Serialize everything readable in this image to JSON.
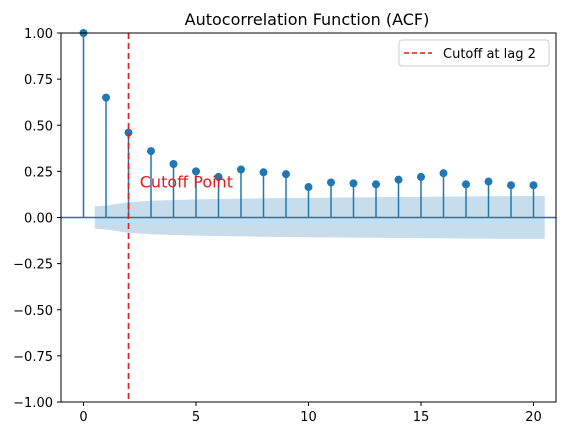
{
  "chart_data": {
    "type": "stem",
    "title": "Autocorrelation Function (ACF)",
    "xlabel": "",
    "ylabel": "",
    "xlim": [
      -1,
      21
    ],
    "ylim": [
      -1.0,
      1.0
    ],
    "x_ticks": [
      0,
      5,
      10,
      15,
      20
    ],
    "y_ticks": [
      -1.0,
      -0.75,
      -0.5,
      -0.25,
      0.0,
      0.25,
      0.5,
      0.75,
      1.0
    ],
    "x_tick_labels": [
      "0",
      "5",
      "10",
      "15",
      "20"
    ],
    "y_tick_labels": [
      "−1.00",
      "−0.75",
      "−0.50",
      "−0.25",
      "0.00",
      "0.25",
      "0.50",
      "0.75",
      "1.00"
    ],
    "grid": false,
    "legend_position": "top-right",
    "series": [
      {
        "type": "stem",
        "color": "#1f77b4",
        "x": [
          0,
          1,
          2,
          3,
          4,
          5,
          6,
          7,
          8,
          9,
          10,
          11,
          12,
          13,
          14,
          15,
          16,
          17,
          18,
          19,
          20
        ],
        "values": [
          1.0,
          0.65,
          0.46,
          0.36,
          0.29,
          0.25,
          0.22,
          0.26,
          0.245,
          0.235,
          0.165,
          0.19,
          0.185,
          0.18,
          0.205,
          0.22,
          0.24,
          0.18,
          0.195,
          0.175,
          0.175
        ]
      }
    ],
    "confidence_band": {
      "color": "#1f77b4",
      "x": [
        0.5,
        1,
        2,
        3,
        4,
        5,
        6,
        7,
        8,
        9,
        10,
        11,
        12,
        13,
        14,
        15,
        16,
        17,
        18,
        19,
        20,
        20.5
      ],
      "upper": [
        0.06,
        0.065,
        0.083,
        0.091,
        0.095,
        0.098,
        0.1,
        0.102,
        0.104,
        0.106,
        0.107,
        0.108,
        0.109,
        0.11,
        0.111,
        0.112,
        0.113,
        0.114,
        0.115,
        0.116,
        0.116,
        0.116
      ],
      "lower": [
        -0.06,
        -0.065,
        -0.083,
        -0.091,
        -0.095,
        -0.098,
        -0.1,
        -0.102,
        -0.104,
        -0.106,
        -0.107,
        -0.108,
        -0.109,
        -0.11,
        -0.111,
        -0.112,
        -0.113,
        -0.114,
        -0.115,
        -0.116,
        -0.116,
        -0.116
      ]
    },
    "cutoff_line": {
      "x": 2,
      "color": "#e31a1c",
      "label": "Cutoff at lag 2"
    },
    "annotations": [
      {
        "text": "Cutoff Point",
        "x": 2.5,
        "y": 0.2,
        "color": "#e31a1c"
      }
    ]
  }
}
